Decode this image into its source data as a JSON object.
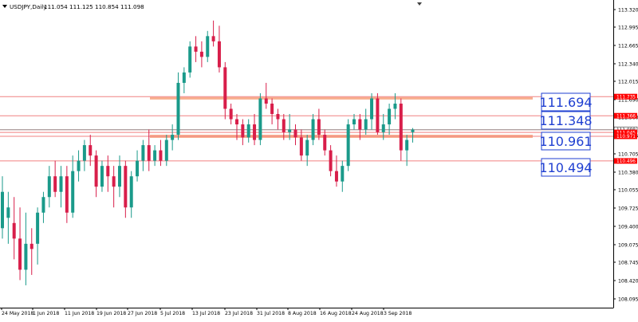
{
  "header": {
    "symbol_label": "USDJPY,Daily",
    "ohlc_text": "111.054 111.125 110.854 111.098"
  },
  "chart_data": {
    "type": "candlestick",
    "symbol": "USDJPY",
    "timeframe": "Daily",
    "price_range": [
      107.7,
      113.55
    ],
    "y_ticks": [
      "113.320",
      "112.995",
      "112.665",
      "112.340",
      "112.015",
      "111.690",
      "111.360",
      "111.035",
      "110.705",
      "110.380",
      "110.055",
      "109.725",
      "109.400",
      "109.075",
      "108.745",
      "108.420",
      "108.095"
    ],
    "x_ticks": [
      "24 May 2018",
      "1 Jun 2018",
      "11 Jun 2018",
      "19 Jun 2018",
      "27 Jun 2018",
      "5 Jul 2018",
      "13 Jul 2018",
      "23 Jul 2018",
      "31 Jul 2018",
      "8 Aug 2018",
      "16 Aug 2018",
      "24 Aug 2018",
      "3 Sep 2018"
    ],
    "colors": {
      "bull": "#1a9a8a",
      "bear": "#d81e4a",
      "zone": "#f7a07a",
      "line": "#f08080",
      "tag_red": "#ff0000",
      "box_border": "#1f3fd1",
      "box_text": "#1f3fd1"
    },
    "zones": [
      {
        "low": 111.69,
        "high": 111.725
      },
      {
        "low": 110.94,
        "high": 111.0
      }
    ],
    "levels": [
      {
        "price": 111.735,
        "label": "111.735"
      },
      {
        "price": 111.366,
        "label": "111.366"
      },
      {
        "price": 111.098,
        "label": "111.098"
      },
      {
        "price": 111.045,
        "label": "111.045"
      },
      {
        "price": 110.971,
        "label": "110.971"
      },
      {
        "price": 110.496,
        "label": "110.496"
      }
    ],
    "price_boxes": [
      "111.694",
      "111.348",
      "110.961",
      "110.494"
    ],
    "candles": [
      {
        "o": 109.2,
        "h": 110.2,
        "l": 109.0,
        "c": 109.9
      },
      {
        "o": 109.4,
        "h": 109.9,
        "l": 108.9,
        "c": 109.6
      },
      {
        "o": 109.3,
        "h": 109.8,
        "l": 108.6,
        "c": 109.0
      },
      {
        "o": 109.0,
        "h": 109.6,
        "l": 108.2,
        "c": 108.4
      },
      {
        "o": 108.4,
        "h": 109.5,
        "l": 108.1,
        "c": 108.9
      },
      {
        "o": 108.9,
        "h": 109.2,
        "l": 108.3,
        "c": 108.8
      },
      {
        "o": 108.9,
        "h": 109.6,
        "l": 108.5,
        "c": 109.5
      },
      {
        "o": 109.5,
        "h": 109.9,
        "l": 109.3,
        "c": 109.8
      },
      {
        "o": 109.8,
        "h": 110.4,
        "l": 109.6,
        "c": 110.2
      },
      {
        "o": 110.2,
        "h": 110.5,
        "l": 109.8,
        "c": 109.9
      },
      {
        "o": 109.9,
        "h": 110.4,
        "l": 109.6,
        "c": 110.2
      },
      {
        "o": 110.2,
        "h": 110.4,
        "l": 109.3,
        "c": 109.5
      },
      {
        "o": 109.5,
        "h": 110.6,
        "l": 109.4,
        "c": 110.3
      },
      {
        "o": 110.3,
        "h": 110.7,
        "l": 110.1,
        "c": 110.5
      },
      {
        "o": 110.5,
        "h": 110.9,
        "l": 110.3,
        "c": 110.8
      },
      {
        "o": 110.8,
        "h": 111.0,
        "l": 110.4,
        "c": 110.6
      },
      {
        "o": 110.6,
        "h": 110.7,
        "l": 109.8,
        "c": 110.0
      },
      {
        "o": 110.0,
        "h": 110.5,
        "l": 109.9,
        "c": 110.4
      },
      {
        "o": 110.4,
        "h": 110.6,
        "l": 109.9,
        "c": 110.2
      },
      {
        "o": 110.2,
        "h": 110.4,
        "l": 109.6,
        "c": 110.0
      },
      {
        "o": 110.0,
        "h": 110.6,
        "l": 109.8,
        "c": 110.4
      },
      {
        "o": 110.4,
        "h": 110.5,
        "l": 109.4,
        "c": 109.6
      },
      {
        "o": 109.6,
        "h": 110.3,
        "l": 109.4,
        "c": 110.2
      },
      {
        "o": 110.2,
        "h": 110.7,
        "l": 110.1,
        "c": 110.5
      },
      {
        "o": 110.5,
        "h": 110.9,
        "l": 110.3,
        "c": 110.8
      },
      {
        "o": 110.8,
        "h": 111.1,
        "l": 110.3,
        "c": 110.5
      },
      {
        "o": 110.5,
        "h": 110.8,
        "l": 110.4,
        "c": 110.7
      },
      {
        "o": 110.7,
        "h": 110.9,
        "l": 110.4,
        "c": 110.5
      },
      {
        "o": 110.5,
        "h": 111.0,
        "l": 110.4,
        "c": 110.9
      },
      {
        "o": 110.9,
        "h": 111.2,
        "l": 110.7,
        "c": 111.0
      },
      {
        "o": 111.0,
        "h": 112.2,
        "l": 110.9,
        "c": 112.0
      },
      {
        "o": 112.0,
        "h": 112.3,
        "l": 111.8,
        "c": 112.2
      },
      {
        "o": 112.2,
        "h": 112.8,
        "l": 112.1,
        "c": 112.7
      },
      {
        "o": 112.7,
        "h": 112.9,
        "l": 112.4,
        "c": 112.6
      },
      {
        "o": 112.6,
        "h": 112.8,
        "l": 112.3,
        "c": 112.5
      },
      {
        "o": 112.5,
        "h": 113.0,
        "l": 112.4,
        "c": 112.9
      },
      {
        "o": 112.9,
        "h": 113.2,
        "l": 112.7,
        "c": 112.8
      },
      {
        "o": 112.8,
        "h": 113.1,
        "l": 112.2,
        "c": 112.3
      },
      {
        "o": 112.3,
        "h": 112.4,
        "l": 111.3,
        "c": 111.5
      },
      {
        "o": 111.5,
        "h": 111.6,
        "l": 111.2,
        "c": 111.3
      },
      {
        "o": 111.3,
        "h": 111.4,
        "l": 110.9,
        "c": 111.2
      },
      {
        "o": 111.2,
        "h": 111.3,
        "l": 110.8,
        "c": 110.95
      },
      {
        "o": 110.95,
        "h": 111.3,
        "l": 110.85,
        "c": 111.2
      },
      {
        "o": 111.2,
        "h": 111.4,
        "l": 110.8,
        "c": 110.9
      },
      {
        "o": 110.9,
        "h": 111.8,
        "l": 110.8,
        "c": 111.7
      },
      {
        "o": 111.7,
        "h": 112.0,
        "l": 111.5,
        "c": 111.6
      },
      {
        "o": 111.6,
        "h": 111.7,
        "l": 111.2,
        "c": 111.4
      },
      {
        "o": 111.4,
        "h": 111.5,
        "l": 111.1,
        "c": 111.3
      },
      {
        "o": 111.3,
        "h": 111.4,
        "l": 110.9,
        "c": 111.05
      },
      {
        "o": 111.05,
        "h": 111.4,
        "l": 110.9,
        "c": 111.1
      },
      {
        "o": 111.1,
        "h": 111.2,
        "l": 110.8,
        "c": 110.95
      },
      {
        "o": 110.95,
        "h": 111.1,
        "l": 110.5,
        "c": 110.6
      },
      {
        "o": 110.6,
        "h": 111.0,
        "l": 110.4,
        "c": 110.9
      },
      {
        "o": 110.9,
        "h": 111.4,
        "l": 110.8,
        "c": 111.3
      },
      {
        "o": 111.3,
        "h": 111.5,
        "l": 110.9,
        "c": 111.0
      },
      {
        "o": 111.0,
        "h": 111.1,
        "l": 110.6,
        "c": 110.7
      },
      {
        "o": 110.7,
        "h": 110.8,
        "l": 110.2,
        "c": 110.3
      },
      {
        "o": 110.3,
        "h": 110.6,
        "l": 110.0,
        "c": 110.1
      },
      {
        "o": 110.1,
        "h": 110.5,
        "l": 109.9,
        "c": 110.4
      },
      {
        "o": 110.4,
        "h": 111.3,
        "l": 110.3,
        "c": 111.2
      },
      {
        "o": 111.2,
        "h": 111.4,
        "l": 111.1,
        "c": 111.3
      },
      {
        "o": 111.3,
        "h": 111.4,
        "l": 110.9,
        "c": 111.1
      },
      {
        "o": 111.1,
        "h": 111.5,
        "l": 111.0,
        "c": 111.3
      },
      {
        "o": 111.3,
        "h": 111.8,
        "l": 111.1,
        "c": 111.7
      },
      {
        "o": 111.7,
        "h": 111.8,
        "l": 111.0,
        "c": 111.05
      },
      {
        "o": 111.05,
        "h": 111.4,
        "l": 110.9,
        "c": 111.2
      },
      {
        "o": 111.2,
        "h": 111.6,
        "l": 111.0,
        "c": 111.5
      },
      {
        "o": 111.5,
        "h": 111.8,
        "l": 111.3,
        "c": 111.6
      },
      {
        "o": 111.6,
        "h": 111.7,
        "l": 110.5,
        "c": 110.7
      },
      {
        "o": 110.7,
        "h": 111.0,
        "l": 110.4,
        "c": 110.9
      },
      {
        "o": 111.05,
        "h": 111.13,
        "l": 110.85,
        "c": 111.1
      }
    ]
  }
}
